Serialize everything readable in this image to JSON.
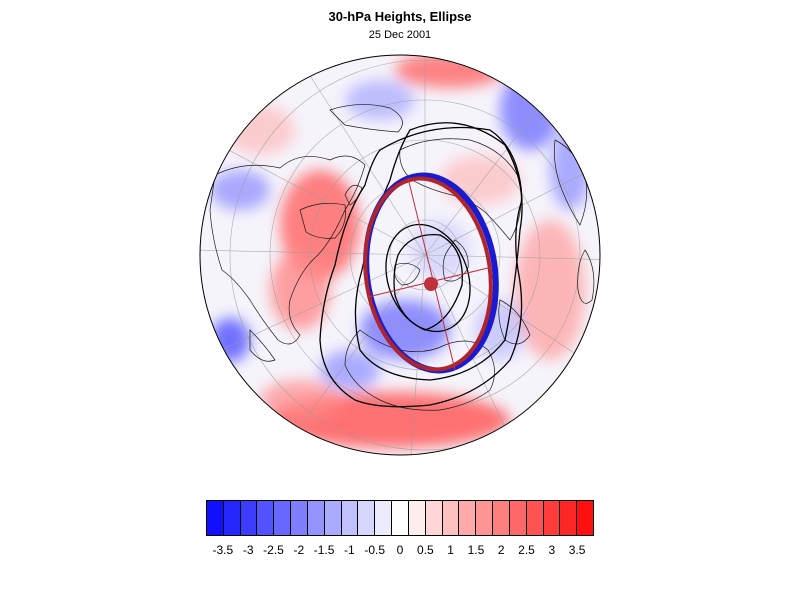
{
  "title": "30-hPa Heights, Ellipse",
  "subtitle": "25 Dec 2001",
  "colorbar": {
    "colors": [
      "#1010ff",
      "#2626ff",
      "#3c3cff",
      "#5252ff",
      "#6868ff",
      "#7e7eff",
      "#9494ff",
      "#aaaaff",
      "#c0c0ff",
      "#d6d6ff",
      "#ececff",
      "#ffffff",
      "#ffecec",
      "#ffd6d6",
      "#ffc0c0",
      "#ffaaaa",
      "#ff9494",
      "#ff7e7e",
      "#ff6868",
      "#ff5252",
      "#ff3c3c",
      "#ff2626",
      "#ff1010"
    ],
    "tick_labels": [
      "-3.5",
      "-3",
      "-2.5",
      "-2",
      "-1.5",
      "-1",
      "-0.5",
      "0",
      "0.5",
      "1",
      "1.5",
      "2",
      "2.5",
      "3",
      "3.5"
    ]
  },
  "map": {
    "projection": "north-polar orthographic",
    "field": "30-hPa height anomaly",
    "overlays": [
      "vortex ellipse (red/blue)",
      "ellipse axes",
      "ellipse centroid",
      "height contours (black)"
    ]
  }
}
